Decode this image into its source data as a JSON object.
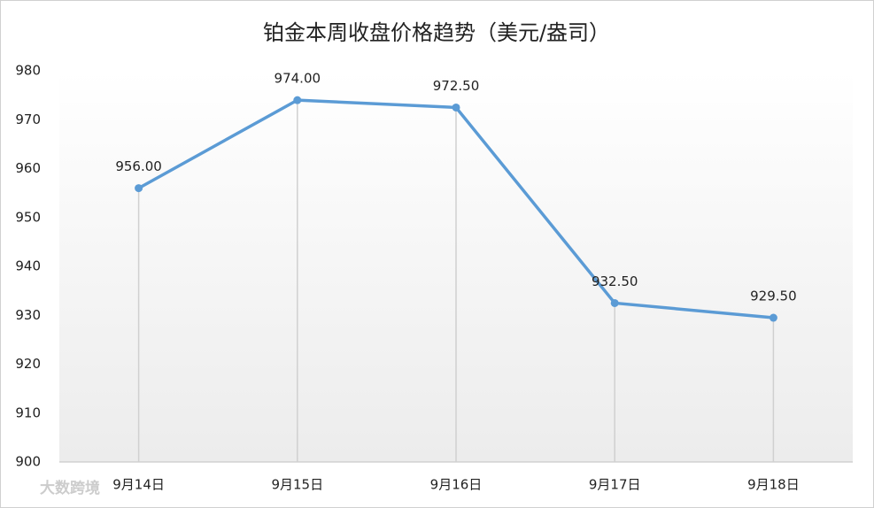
{
  "chart_data": {
    "type": "line",
    "title": "铂金本周收盘价格趋势（美元/盎司）",
    "categories": [
      "9月14日",
      "9月15日",
      "9月16日",
      "9月17日",
      "9月18日"
    ],
    "values": [
      956,
      974,
      972.5,
      932.5,
      929.5
    ],
    "value_labels": [
      "956.00",
      "974.00",
      "972.50",
      "932.50",
      "929.50"
    ],
    "color": "#5b9bd5",
    "ylim": [
      900,
      980
    ],
    "yticks": [
      900,
      910,
      920,
      930,
      940,
      950,
      960,
      970,
      980
    ],
    "drop_lines": true,
    "watermark": "大数跨境"
  }
}
